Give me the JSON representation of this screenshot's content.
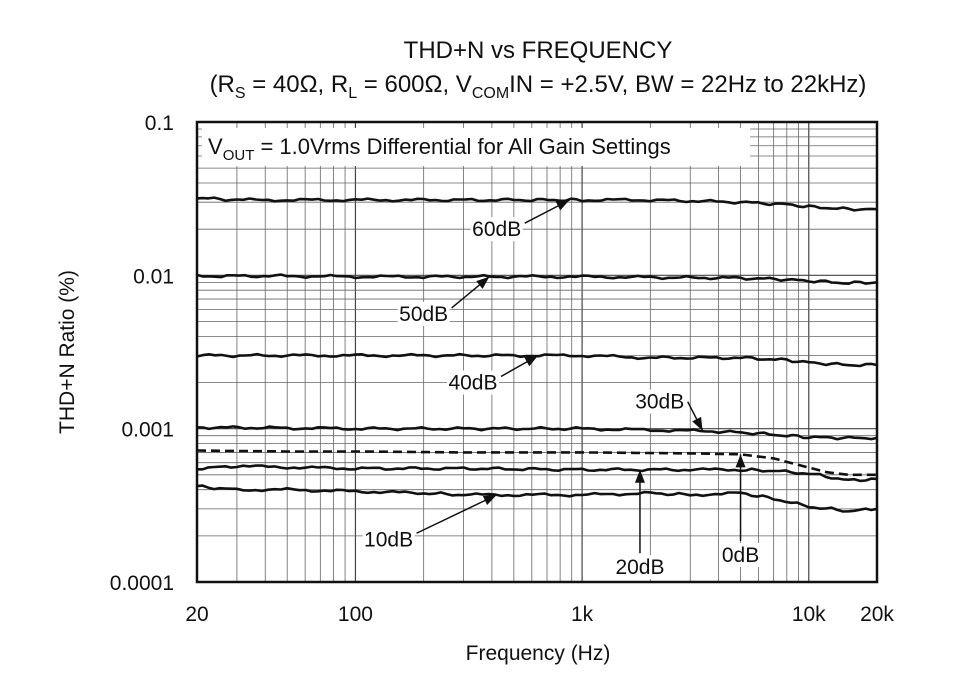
{
  "chart_data": {
    "type": "line",
    "title": "THD+N vs FREQUENCY",
    "subtitle_parts": {
      "open": "(R",
      "rs_sub": "S",
      "rs_val": " = 40Ω, R",
      "rl_sub": "L",
      "rl_val": " = 600Ω, V",
      "vcom_sub": "COM",
      "rest": "IN = +2.5V, BW = 22Hz to 22kHz)"
    },
    "annotation_parts": {
      "v": "V",
      "sub": "OUT",
      "rest": " = 1.0Vrms Differential for All Gain Settings"
    },
    "xlabel": "Frequency (Hz)",
    "ylabel": "THD+N Ratio (%)",
    "x_scale": "log",
    "y_scale": "log",
    "xlim": [
      20,
      20000
    ],
    "ylim": [
      0.0001,
      0.1
    ],
    "grid": true,
    "x_ticks": [
      {
        "value": 20,
        "label": "20"
      },
      {
        "value": 100,
        "label": "100"
      },
      {
        "value": 1000,
        "label": "1k"
      },
      {
        "value": 10000,
        "label": "10k"
      },
      {
        "value": 20000,
        "label": "20k"
      }
    ],
    "y_ticks": [
      {
        "value": 0.1,
        "label": "0.1"
      },
      {
        "value": 0.01,
        "label": "0.01"
      },
      {
        "value": 0.001,
        "label": "0.001"
      },
      {
        "value": 0.0001,
        "label": "0.0001"
      }
    ],
    "series": [
      {
        "name": "60dB",
        "style": "solid",
        "points": [
          [
            20,
            0.032
          ],
          [
            30,
            0.031
          ],
          [
            50,
            0.031
          ],
          [
            100,
            0.031
          ],
          [
            200,
            0.031
          ],
          [
            500,
            0.031
          ],
          [
            800,
            0.031
          ],
          [
            1000,
            0.031
          ],
          [
            2000,
            0.031
          ],
          [
            5000,
            0.03
          ],
          [
            8000,
            0.029
          ],
          [
            10000,
            0.028
          ],
          [
            15000,
            0.027
          ],
          [
            20000,
            0.027
          ]
        ]
      },
      {
        "name": "50dB",
        "style": "solid",
        "points": [
          [
            20,
            0.0099
          ],
          [
            50,
            0.0099
          ],
          [
            100,
            0.0098
          ],
          [
            200,
            0.0098
          ],
          [
            500,
            0.0098
          ],
          [
            1000,
            0.0098
          ],
          [
            2000,
            0.0097
          ],
          [
            5000,
            0.0096
          ],
          [
            8000,
            0.0094
          ],
          [
            10000,
            0.0092
          ],
          [
            15000,
            0.0089
          ],
          [
            20000,
            0.009
          ]
        ]
      },
      {
        "name": "40dB",
        "style": "solid",
        "points": [
          [
            20,
            0.003
          ],
          [
            50,
            0.003
          ],
          [
            100,
            0.003
          ],
          [
            200,
            0.003
          ],
          [
            500,
            0.003
          ],
          [
            1000,
            0.003
          ],
          [
            2000,
            0.0029
          ],
          [
            5000,
            0.0029
          ],
          [
            8000,
            0.0028
          ],
          [
            10000,
            0.0027
          ],
          [
            15000,
            0.0026
          ],
          [
            20000,
            0.0026
          ]
        ]
      },
      {
        "name": "30dB",
        "style": "solid",
        "points": [
          [
            20,
            0.00102
          ],
          [
            50,
            0.00101
          ],
          [
            100,
            0.001
          ],
          [
            300,
            0.001
          ],
          [
            1000,
            0.001
          ],
          [
            2000,
            0.00098
          ],
          [
            4000,
            0.00096
          ],
          [
            6000,
            0.00093
          ],
          [
            8000,
            0.0009
          ],
          [
            10000,
            0.00088
          ],
          [
            15000,
            0.00087
          ],
          [
            20000,
            0.00087
          ]
        ]
      },
      {
        "name": "0dB",
        "style": "dashed",
        "points": [
          [
            20,
            0.00072
          ],
          [
            50,
            0.00071
          ],
          [
            100,
            0.00071
          ],
          [
            300,
            0.0007
          ],
          [
            1000,
            0.0007
          ],
          [
            3000,
            0.00069
          ],
          [
            5000,
            0.00068
          ],
          [
            7000,
            0.00064
          ],
          [
            9000,
            0.00058
          ],
          [
            12000,
            0.00052
          ],
          [
            15000,
            0.0005
          ],
          [
            20000,
            0.0005
          ]
        ]
      },
      {
        "name": "20dB",
        "style": "solid",
        "points": [
          [
            20,
            0.00055
          ],
          [
            30,
            0.00057
          ],
          [
            50,
            0.00056
          ],
          [
            100,
            0.00055
          ],
          [
            300,
            0.00055
          ],
          [
            1000,
            0.00054
          ],
          [
            3000,
            0.00054
          ],
          [
            5000,
            0.00054
          ],
          [
            7000,
            0.00053
          ],
          [
            10000,
            0.00051
          ],
          [
            15000,
            0.00046
          ],
          [
            20000,
            0.00047
          ]
        ]
      },
      {
        "name": "10dB",
        "style": "solid",
        "points": [
          [
            20,
            0.00042
          ],
          [
            30,
            0.0004
          ],
          [
            50,
            0.0004
          ],
          [
            100,
            0.00039
          ],
          [
            200,
            0.00038
          ],
          [
            300,
            0.00037
          ],
          [
            500,
            0.00037
          ],
          [
            1000,
            0.00037
          ],
          [
            2000,
            0.00038
          ],
          [
            3000,
            0.00037
          ],
          [
            5000,
            0.00038
          ],
          [
            7000,
            0.00035
          ],
          [
            10000,
            0.00031
          ],
          [
            15000,
            0.00029
          ],
          [
            20000,
            0.0003
          ]
        ]
      }
    ],
    "labels": [
      {
        "text": "60dB",
        "at": [
          420,
          0.02
        ],
        "arrow_to": [
          880,
          0.031
        ]
      },
      {
        "text": "50dB",
        "at": [
          200,
          0.0056
        ],
        "arrow_to": [
          390,
          0.0098
        ]
      },
      {
        "text": "40dB",
        "at": [
          330,
          0.002
        ],
        "arrow_to": [
          640,
          0.003
        ]
      },
      {
        "text": "30dB",
        "at": [
          2200,
          0.0015
        ],
        "arrow_to": [
          3400,
          0.00097
        ]
      },
      {
        "text": "10dB",
        "at": [
          140,
          0.00019
        ],
        "arrow_to": [
          420,
          0.00037
        ]
      },
      {
        "text": "20dB",
        "at": [
          1800,
          0.000125
        ],
        "arrow_to": [
          1800,
          0.00054
        ]
      },
      {
        "text": "0dB",
        "at": [
          5000,
          0.00015
        ],
        "arrow_to": [
          5000,
          0.00068
        ]
      }
    ]
  }
}
